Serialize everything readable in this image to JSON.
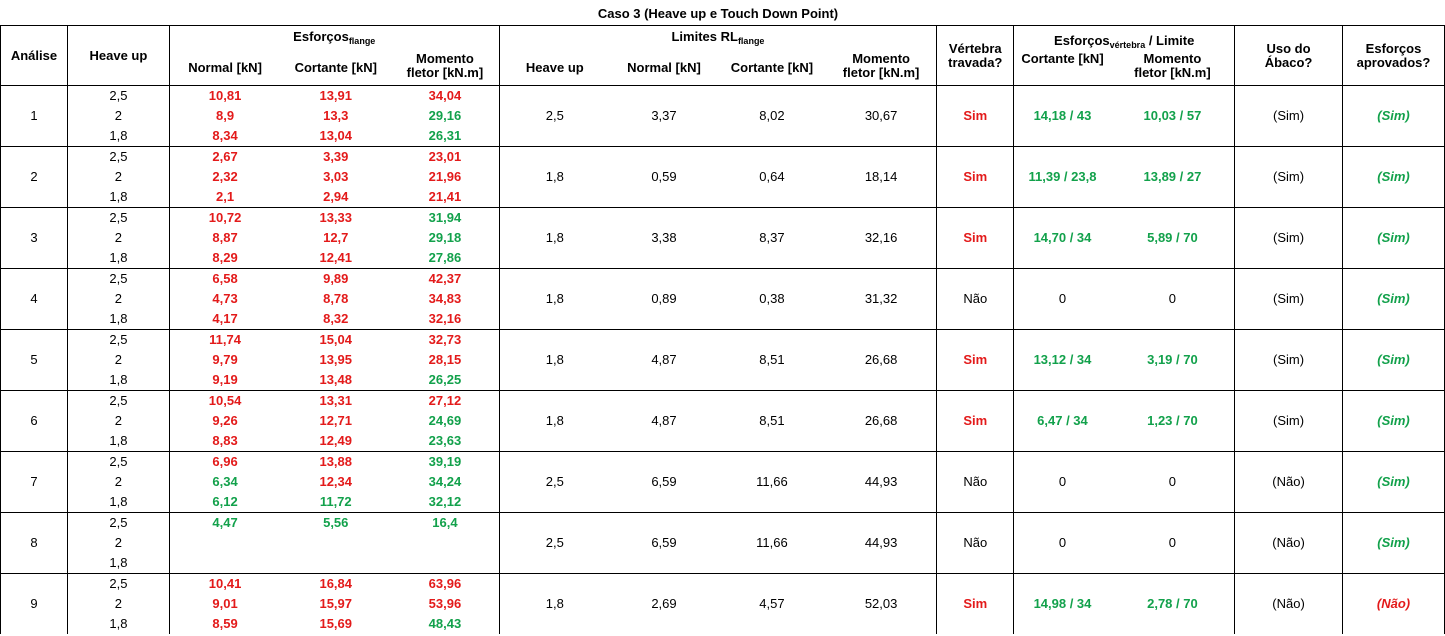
{
  "title": "Caso 3 (Heave up e Touch Down Point)",
  "headers": {
    "analise": "Análise",
    "heave_up": "Heave up",
    "esforcos_main": "Esforços",
    "esforcos_sub": "flange",
    "normal": "Normal [kN]",
    "cortante": "Cortante [kN]",
    "momento_l1": "Momento",
    "momento_l2": "fletor [kN.m]",
    "limites_main": "Limites RL",
    "limites_sub": "flange",
    "heave_up2": "Heave up",
    "vertebra_l1": "Vértebra",
    "vertebra_l2": "travada?",
    "esf_vert_main": "Esforços",
    "esf_vert_sub": "vértebra",
    "esf_vert_suffix": " / Limite",
    "cortante2": "Cortante [kN]",
    "momento2_l1": "Momento",
    "momento2_l2": "fletor [kN.m]",
    "abaco_l1": "Uso do",
    "abaco_l2": "Ábaco?",
    "aprov_l1": "Esforços",
    "aprov_l2": "aprovados?"
  },
  "colors": {
    "red": "#e31a1a",
    "green": "#12a14b"
  },
  "rows": [
    {
      "analise": "1",
      "heave": [
        "2,5",
        "2",
        "1,8"
      ],
      "normal": [
        {
          "v": "10,81",
          "c": "red"
        },
        {
          "v": "8,9",
          "c": "red"
        },
        {
          "v": "8,34",
          "c": "red"
        }
      ],
      "cortante": [
        {
          "v": "13,91",
          "c": "red"
        },
        {
          "v": "13,3",
          "c": "red"
        },
        {
          "v": "13,04",
          "c": "red"
        }
      ],
      "momento": [
        {
          "v": "34,04",
          "c": "red"
        },
        {
          "v": "29,16",
          "c": "green"
        },
        {
          "v": "26,31",
          "c": "green"
        }
      ],
      "lim_heave": "2,5",
      "lim_normal": "3,37",
      "lim_cortante": "8,02",
      "lim_momento": "30,67",
      "vertebra": {
        "v": "Sim",
        "c": "red"
      },
      "ev_cortante": {
        "v": "14,18 / 43",
        "c": "green"
      },
      "ev_momento": {
        "v": "10,03 / 57",
        "c": "green"
      },
      "abaco": "(Sim)",
      "aprovados": {
        "v": "(Sim)",
        "c": "green"
      }
    },
    {
      "analise": "2",
      "heave": [
        "2,5",
        "2",
        "1,8"
      ],
      "normal": [
        {
          "v": "2,67",
          "c": "red"
        },
        {
          "v": "2,32",
          "c": "red"
        },
        {
          "v": "2,1",
          "c": "red"
        }
      ],
      "cortante": [
        {
          "v": "3,39",
          "c": "red"
        },
        {
          "v": "3,03",
          "c": "red"
        },
        {
          "v": "2,94",
          "c": "red"
        }
      ],
      "momento": [
        {
          "v": "23,01",
          "c": "red"
        },
        {
          "v": "21,96",
          "c": "red"
        },
        {
          "v": "21,41",
          "c": "red"
        }
      ],
      "lim_heave": "1,8",
      "lim_normal": "0,59",
      "lim_cortante": "0,64",
      "lim_momento": "18,14",
      "vertebra": {
        "v": "Sim",
        "c": "red"
      },
      "ev_cortante": {
        "v": "11,39 / 23,8",
        "c": "green"
      },
      "ev_momento": {
        "v": "13,89 / 27",
        "c": "green"
      },
      "abaco": "(Sim)",
      "aprovados": {
        "v": "(Sim)",
        "c": "green"
      }
    },
    {
      "analise": "3",
      "heave": [
        "2,5",
        "2",
        "1,8"
      ],
      "normal": [
        {
          "v": "10,72",
          "c": "red"
        },
        {
          "v": "8,87",
          "c": "red"
        },
        {
          "v": "8,29",
          "c": "red"
        }
      ],
      "cortante": [
        {
          "v": "13,33",
          "c": "red"
        },
        {
          "v": "12,7",
          "c": "red"
        },
        {
          "v": "12,41",
          "c": "red"
        }
      ],
      "momento": [
        {
          "v": "31,94",
          "c": "green"
        },
        {
          "v": "29,18",
          "c": "green"
        },
        {
          "v": "27,86",
          "c": "green"
        }
      ],
      "lim_heave": "1,8",
      "lim_normal": "3,38",
      "lim_cortante": "8,37",
      "lim_momento": "32,16",
      "vertebra": {
        "v": "Sim",
        "c": "red"
      },
      "ev_cortante": {
        "v": "14,70 / 34",
        "c": "green"
      },
      "ev_momento": {
        "v": "5,89 / 70",
        "c": "green"
      },
      "abaco": "(Sim)",
      "aprovados": {
        "v": "(Sim)",
        "c": "green"
      }
    },
    {
      "analise": "4",
      "heave": [
        "2,5",
        "2",
        "1,8"
      ],
      "normal": [
        {
          "v": "6,58",
          "c": "red"
        },
        {
          "v": "4,73",
          "c": "red"
        },
        {
          "v": "4,17",
          "c": "red"
        }
      ],
      "cortante": [
        {
          "v": "9,89",
          "c": "red"
        },
        {
          "v": "8,78",
          "c": "red"
        },
        {
          "v": "8,32",
          "c": "red"
        }
      ],
      "momento": [
        {
          "v": "42,37",
          "c": "red"
        },
        {
          "v": "34,83",
          "c": "red"
        },
        {
          "v": "32,16",
          "c": "red"
        }
      ],
      "lim_heave": "1,8",
      "lim_normal": "0,89",
      "lim_cortante": "0,38",
      "lim_momento": "31,32",
      "vertebra": {
        "v": "Não",
        "c": "plain"
      },
      "ev_cortante": {
        "v": "0",
        "c": "plain"
      },
      "ev_momento": {
        "v": "0",
        "c": "plain"
      },
      "abaco": "(Sim)",
      "aprovados": {
        "v": "(Sim)",
        "c": "green"
      }
    },
    {
      "analise": "5",
      "heave": [
        "2,5",
        "2",
        "1,8"
      ],
      "normal": [
        {
          "v": "11,74",
          "c": "red"
        },
        {
          "v": "9,79",
          "c": "red"
        },
        {
          "v": "9,19",
          "c": "red"
        }
      ],
      "cortante": [
        {
          "v": "15,04",
          "c": "red"
        },
        {
          "v": "13,95",
          "c": "red"
        },
        {
          "v": "13,48",
          "c": "red"
        }
      ],
      "momento": [
        {
          "v": "32,73",
          "c": "red"
        },
        {
          "v": "28,15",
          "c": "red"
        },
        {
          "v": "26,25",
          "c": "green"
        }
      ],
      "lim_heave": "1,8",
      "lim_normal": "4,87",
      "lim_cortante": "8,51",
      "lim_momento": "26,68",
      "vertebra": {
        "v": "Sim",
        "c": "red"
      },
      "ev_cortante": {
        "v": "13,12 / 34",
        "c": "green"
      },
      "ev_momento": {
        "v": "3,19 / 70",
        "c": "green"
      },
      "abaco": "(Sim)",
      "aprovados": {
        "v": "(Sim)",
        "c": "green"
      }
    },
    {
      "analise": "6",
      "heave": [
        "2,5",
        "2",
        "1,8"
      ],
      "normal": [
        {
          "v": "10,54",
          "c": "red"
        },
        {
          "v": "9,26",
          "c": "red"
        },
        {
          "v": "8,83",
          "c": "red"
        }
      ],
      "cortante": [
        {
          "v": "13,31",
          "c": "red"
        },
        {
          "v": "12,71",
          "c": "red"
        },
        {
          "v": "12,49",
          "c": "red"
        }
      ],
      "momento": [
        {
          "v": "27,12",
          "c": "red"
        },
        {
          "v": "24,69",
          "c": "green"
        },
        {
          "v": "23,63",
          "c": "green"
        }
      ],
      "lim_heave": "1,8",
      "lim_normal": "4,87",
      "lim_cortante": "8,51",
      "lim_momento": "26,68",
      "vertebra": {
        "v": "Sim",
        "c": "red"
      },
      "ev_cortante": {
        "v": "6,47 / 34",
        "c": "green"
      },
      "ev_momento": {
        "v": "1,23 / 70",
        "c": "green"
      },
      "abaco": "(Sim)",
      "aprovados": {
        "v": "(Sim)",
        "c": "green"
      }
    },
    {
      "analise": "7",
      "heave": [
        "2,5",
        "2",
        "1,8"
      ],
      "normal": [
        {
          "v": "6,96",
          "c": "red"
        },
        {
          "v": "6,34",
          "c": "green"
        },
        {
          "v": "6,12",
          "c": "green"
        }
      ],
      "cortante": [
        {
          "v": "13,88",
          "c": "red"
        },
        {
          "v": "12,34",
          "c": "red"
        },
        {
          "v": "11,72",
          "c": "green"
        }
      ],
      "momento": [
        {
          "v": "39,19",
          "c": "green"
        },
        {
          "v": "34,24",
          "c": "green"
        },
        {
          "v": "32,12",
          "c": "green"
        }
      ],
      "lim_heave": "2,5",
      "lim_normal": "6,59",
      "lim_cortante": "11,66",
      "lim_momento": "44,93",
      "vertebra": {
        "v": "Não",
        "c": "plain"
      },
      "ev_cortante": {
        "v": "0",
        "c": "plain"
      },
      "ev_momento": {
        "v": "0",
        "c": "plain"
      },
      "abaco": "(Não)",
      "aprovados": {
        "v": "(Sim)",
        "c": "green"
      }
    },
    {
      "analise": "8",
      "heave": [
        "2,5",
        "2",
        "1,8"
      ],
      "normal": [
        {
          "v": "4,47",
          "c": "green"
        },
        {
          "v": "",
          "c": "plain"
        },
        {
          "v": "",
          "c": "plain"
        }
      ],
      "cortante": [
        {
          "v": "5,56",
          "c": "green"
        },
        {
          "v": "",
          "c": "plain"
        },
        {
          "v": "",
          "c": "plain"
        }
      ],
      "momento": [
        {
          "v": "16,4",
          "c": "green"
        },
        {
          "v": "",
          "c": "plain"
        },
        {
          "v": "",
          "c": "plain"
        }
      ],
      "lim_heave": "2,5",
      "lim_normal": "6,59",
      "lim_cortante": "11,66",
      "lim_momento": "44,93",
      "vertebra": {
        "v": "Não",
        "c": "plain"
      },
      "ev_cortante": {
        "v": "0",
        "c": "plain"
      },
      "ev_momento": {
        "v": "0",
        "c": "plain"
      },
      "abaco": "(Não)",
      "aprovados": {
        "v": "(Sim)",
        "c": "green"
      }
    },
    {
      "analise": "9",
      "heave": [
        "2,5",
        "2",
        "1,8"
      ],
      "normal": [
        {
          "v": "10,41",
          "c": "red"
        },
        {
          "v": "9,01",
          "c": "red"
        },
        {
          "v": "8,59",
          "c": "red"
        }
      ],
      "cortante": [
        {
          "v": "16,84",
          "c": "red"
        },
        {
          "v": "15,97",
          "c": "red"
        },
        {
          "v": "15,69",
          "c": "red"
        }
      ],
      "momento": [
        {
          "v": "63,96",
          "c": "red"
        },
        {
          "v": "53,96",
          "c": "red"
        },
        {
          "v": "48,43",
          "c": "green"
        }
      ],
      "lim_heave": "1,8",
      "lim_normal": "2,69",
      "lim_cortante": "4,57",
      "lim_momento": "52,03",
      "vertebra": {
        "v": "Sim",
        "c": "red"
      },
      "ev_cortante": {
        "v": "14,98 / 34",
        "c": "green"
      },
      "ev_momento": {
        "v": "2,78 / 70",
        "c": "green"
      },
      "abaco": "(Não)",
      "aprovados": {
        "v": "(Não)",
        "c": "red"
      }
    }
  ]
}
